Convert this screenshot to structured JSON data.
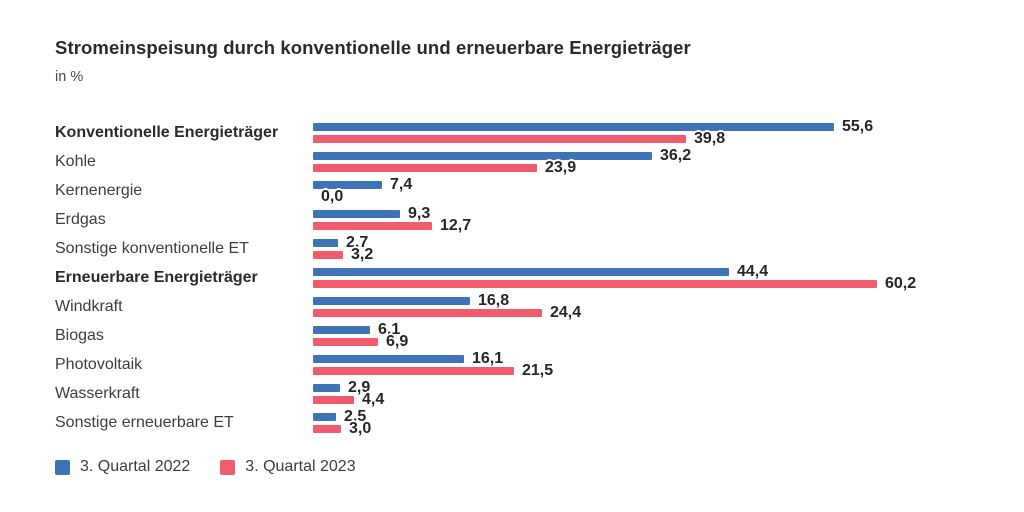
{
  "page": {
    "background": "#ffffff"
  },
  "chart": {
    "title": "Stromeinspeisung durch konventionelle und erneuerbare Energieträger",
    "subtitle": "in %"
  },
  "chart_data": {
    "type": "bar",
    "orientation": "horizontal",
    "unit": "%",
    "xlim": [
      0,
      62
    ],
    "grid": false,
    "legend_position": "bottom",
    "value_label_decimal": "comma",
    "categories": [
      "Konventionelle Energieträger",
      "Kohle",
      "Kernenergie",
      "Erdgas",
      "Sonstige konventionelle ET",
      "Erneuerbare Energieträger",
      "Windkraft",
      "Biogas",
      "Photovoltaik",
      "Wasserkraft",
      "Sonstige erneuerbare ET"
    ],
    "bold_indices": [
      0,
      5
    ],
    "series": [
      {
        "name": "3. Quartal 2022",
        "color": "#3e73b6",
        "values": [
          55.6,
          36.2,
          7.4,
          9.3,
          2.7,
          44.4,
          16.8,
          6.1,
          16.1,
          2.9,
          2.5
        ],
        "labels": [
          "55,6",
          "36,2",
          "7,4",
          "9,3",
          "2,7",
          "44,4",
          "16,8",
          "6,1",
          "16,1",
          "2,9",
          "2,5"
        ]
      },
      {
        "name": "3. Quartal 2023",
        "color": "#f05c6e",
        "values": [
          39.8,
          23.9,
          0.0,
          12.7,
          3.2,
          60.2,
          24.4,
          6.9,
          21.5,
          4.4,
          3.0
        ],
        "labels": [
          "39,8",
          "23,9",
          "0,0",
          "12,7",
          "3,2",
          "60,2",
          "24,4",
          "6,9",
          "21,5",
          "4,4",
          "3,0"
        ]
      }
    ]
  }
}
